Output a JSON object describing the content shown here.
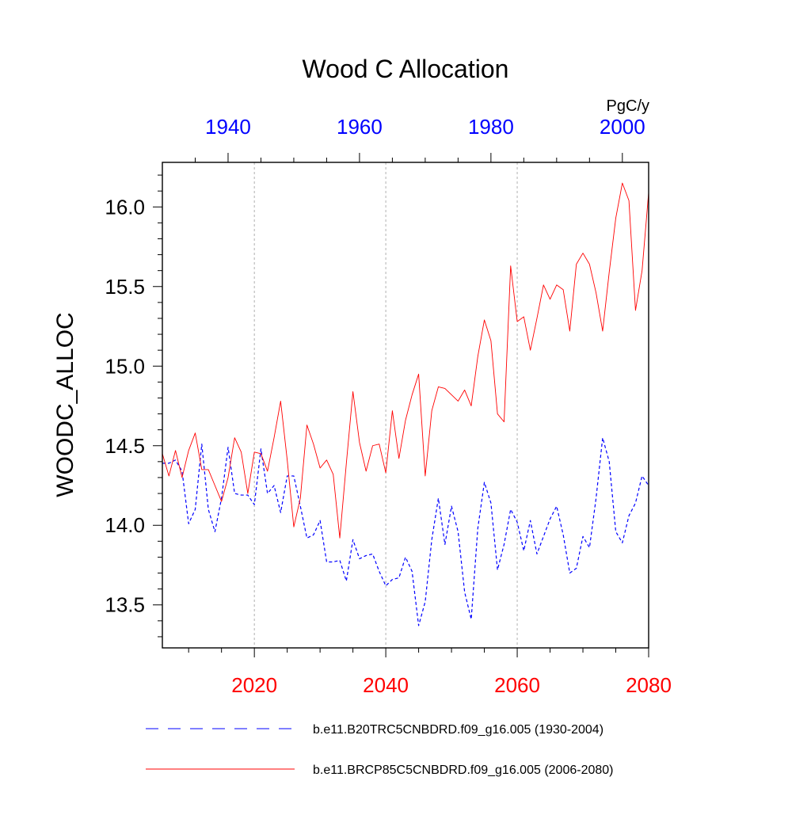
{
  "chart_data": {
    "type": "line",
    "title": "Wood C Allocation",
    "ylabel": "WOODC_ALLOC",
    "units": "PgC/y",
    "ylim": [
      13.23,
      16.28
    ],
    "yticks": [
      13.5,
      14.0,
      14.5,
      15.0,
      15.5,
      16.0
    ],
    "ytick_labels": [
      "13.5",
      "14.0",
      "14.5",
      "15.0",
      "15.5",
      "16.0"
    ],
    "grid": "vertical dashed at bottom-axis major ticks",
    "x_bottom": {
      "range": [
        2006,
        2080
      ],
      "ticks": [
        2020,
        2040,
        2060,
        2080
      ],
      "tick_labels": [
        "2020",
        "2040",
        "2060",
        "2080"
      ],
      "color": "#ff0000"
    },
    "x_top": {
      "range": [
        1930,
        2004
      ],
      "ticks": [
        1940,
        1960,
        1980,
        2000
      ],
      "tick_labels": [
        "1940",
        "1960",
        "1980",
        "2000"
      ],
      "color": "#0000ff"
    },
    "legend_position": "bottom",
    "series": [
      {
        "name": "b.e11.B20TRC5CNBDRD.f09_g16.005 (1930-2004)",
        "axis": "top",
        "color": "#0000ff",
        "style": "dashed",
        "x": [
          1930,
          1931,
          1932,
          1933,
          1934,
          1935,
          1936,
          1937,
          1938,
          1939,
          1940,
          1941,
          1942,
          1943,
          1944,
          1945,
          1946,
          1947,
          1948,
          1949,
          1950,
          1951,
          1952,
          1953,
          1954,
          1955,
          1956,
          1957,
          1958,
          1959,
          1960,
          1961,
          1962,
          1963,
          1964,
          1965,
          1966,
          1967,
          1968,
          1969,
          1970,
          1971,
          1972,
          1973,
          1974,
          1975,
          1976,
          1977,
          1978,
          1979,
          1980,
          1981,
          1982,
          1983,
          1984,
          1985,
          1986,
          1987,
          1988,
          1989,
          1990,
          1991,
          1992,
          1993,
          1994,
          1995,
          1996,
          1997,
          1998,
          1999,
          2000,
          2001,
          2002,
          2003,
          2004
        ],
        "values": [
          14.39,
          14.39,
          14.41,
          14.34,
          14.01,
          14.1,
          14.51,
          14.1,
          13.96,
          14.17,
          14.49,
          14.2,
          14.19,
          14.19,
          14.13,
          14.48,
          14.2,
          14.25,
          14.08,
          14.31,
          14.31,
          14.12,
          13.92,
          13.94,
          14.03,
          13.77,
          13.77,
          13.78,
          13.65,
          13.91,
          13.79,
          13.81,
          13.82,
          13.71,
          13.62,
          13.66,
          13.67,
          13.8,
          13.71,
          13.37,
          13.52,
          13.91,
          14.17,
          13.88,
          14.12,
          13.96,
          13.58,
          13.41,
          13.98,
          14.27,
          14.14,
          13.72,
          13.88,
          14.1,
          14.02,
          13.84,
          14.03,
          13.82,
          13.93,
          14.04,
          14.12,
          13.94,
          13.7,
          13.73,
          13.93,
          13.86,
          14.17,
          14.55,
          14.4,
          13.96,
          13.89,
          14.06,
          14.14,
          14.31,
          14.25
        ]
      },
      {
        "name": "b.e11.BRCP85C5CNBDRD.f09_g16.005 (2006-2080)",
        "axis": "bottom",
        "color": "#ff0000",
        "style": "solid",
        "x": [
          2006,
          2007,
          2008,
          2009,
          2010,
          2011,
          2012,
          2013,
          2014,
          2015,
          2016,
          2017,
          2018,
          2019,
          2020,
          2021,
          2022,
          2023,
          2024,
          2025,
          2026,
          2027,
          2028,
          2029,
          2030,
          2031,
          2032,
          2033,
          2034,
          2035,
          2036,
          2037,
          2038,
          2039,
          2040,
          2041,
          2042,
          2043,
          2044,
          2045,
          2046,
          2047,
          2048,
          2049,
          2050,
          2051,
          2052,
          2053,
          2054,
          2055,
          2056,
          2057,
          2058,
          2059,
          2060,
          2061,
          2062,
          2063,
          2064,
          2065,
          2066,
          2067,
          2068,
          2069,
          2070,
          2071,
          2072,
          2073,
          2074,
          2075,
          2076,
          2077,
          2078,
          2079,
          2080
        ],
        "values": [
          14.45,
          14.31,
          14.47,
          14.3,
          14.47,
          14.58,
          14.35,
          14.35,
          14.25,
          14.15,
          14.3,
          14.55,
          14.46,
          14.2,
          14.46,
          14.45,
          14.34,
          14.55,
          14.78,
          14.41,
          13.99,
          14.17,
          14.63,
          14.51,
          14.36,
          14.41,
          14.32,
          13.92,
          14.39,
          14.84,
          14.52,
          14.34,
          14.5,
          14.51,
          14.33,
          14.72,
          14.42,
          14.66,
          14.82,
          14.95,
          14.31,
          14.72,
          14.87,
          14.86,
          14.82,
          14.78,
          14.85,
          14.75,
          15.06,
          15.29,
          15.16,
          14.7,
          14.65,
          15.63,
          15.28,
          15.31,
          15.1,
          15.3,
          15.51,
          15.42,
          15.51,
          15.48,
          15.22,
          15.64,
          15.71,
          15.64,
          15.46,
          15.22,
          15.59,
          15.93,
          16.15,
          16.04,
          15.35,
          15.6,
          16.09
        ]
      }
    ]
  }
}
